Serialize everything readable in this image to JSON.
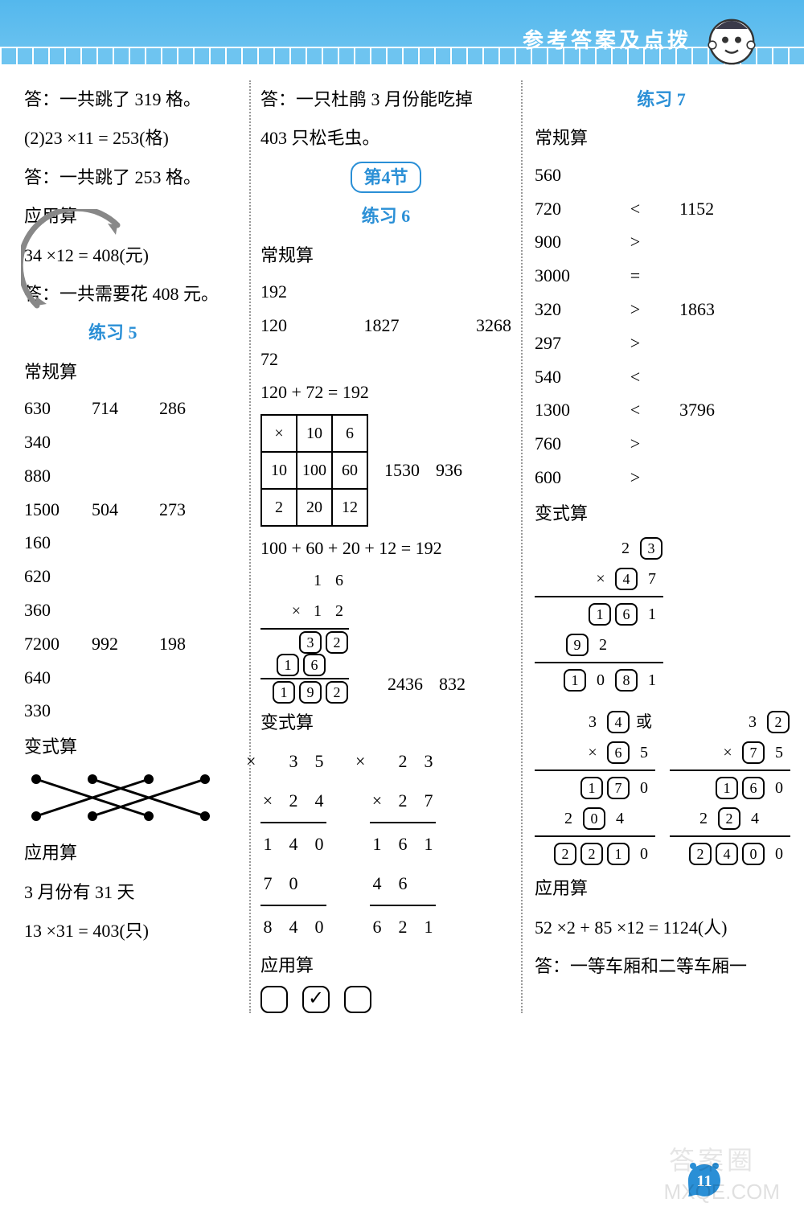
{
  "header": {
    "title": "参考答案及点拨"
  },
  "page_number": "11",
  "watermark_text": "MXQE.COM",
  "watermark_cn": "答案圈",
  "colors": {
    "header_bg": "#6ec4f0",
    "accent": "#2a8fd6",
    "text": "#000000",
    "divider": "#999999",
    "page_badge": "#2a8fd6"
  },
  "col1": {
    "prelude": {
      "ans1": "答：一共跳了 319 格。",
      "eq": "(2)23 ×11 = 253(格)",
      "ans2": "答：一共跳了 253 格。",
      "app_label": "应用算",
      "app_eq": "34 ×12 = 408(元)",
      "app_ans": "答：一共需要花 408 元。"
    },
    "practice5": {
      "label": "练习 5"
    },
    "conventional": {
      "label": "常规算",
      "rows": [
        [
          "630",
          "714",
          "286"
        ],
        [
          "340",
          "",
          ""
        ],
        [
          "880",
          "",
          ""
        ],
        [
          "1500",
          "504",
          "273"
        ],
        [
          "160",
          "",
          ""
        ],
        [
          "620",
          "",
          ""
        ],
        [
          "360",
          "",
          ""
        ],
        [
          "7200",
          "992",
          "198"
        ],
        [
          "640",
          "",
          ""
        ],
        [
          "330",
          "",
          ""
        ]
      ]
    },
    "variant": {
      "label": "变式算",
      "match": {
        "top_x": [
          15,
          85,
          155,
          225
        ],
        "bot_x": [
          15,
          85,
          155,
          225
        ],
        "edges": [
          [
            0,
            2
          ],
          [
            1,
            3
          ],
          [
            2,
            0
          ],
          [
            3,
            1
          ]
        ]
      }
    },
    "app2": {
      "label": "应用算",
      "line1": "3 月份有 31 天",
      "line2": "13 ×31 = 403(只)"
    }
  },
  "col2": {
    "prelude": {
      "ans": "答：一只杜鹃 3 月份能吃掉",
      "ans2": "403 只松毛虫。"
    },
    "section4": {
      "label": "第4节"
    },
    "practice6": {
      "label": "练习 6"
    },
    "conventional": {
      "label": "常规算",
      "r1": "192",
      "r2": [
        "120",
        "1827",
        "3268"
      ],
      "r3": "72",
      "eq1": "120 + 72 = 192",
      "grid": [
        [
          "×",
          "10",
          "6"
        ],
        [
          "10",
          "100",
          "60"
        ],
        [
          "2",
          "20",
          "12"
        ]
      ],
      "grid_side": [
        "1530",
        "936"
      ],
      "eq2": "100 + 60 + 20 + 12 = 192",
      "vcalc": {
        "top": [
          "1",
          "6"
        ],
        "mult": [
          "1",
          "2"
        ],
        "p1": [
          "3",
          "2"
        ],
        "p2": [
          "1",
          "6"
        ],
        "sum": [
          "1",
          "9",
          "2"
        ],
        "side": [
          "2436",
          "832"
        ]
      }
    },
    "variant": {
      "label": "变式算",
      "mult_a": {
        "a": "3 5",
        "b": "2 4",
        "p1": "1 4 0",
        "p2": "7 0",
        "sum": "8 4 0"
      },
      "mult_b": {
        "a": "2 3",
        "b": "2 7",
        "p1": "1 6 1",
        "p2": "4 6",
        "sum": "6 2 1"
      }
    },
    "app": {
      "label": "应用算",
      "checks": [
        "",
        "✓",
        ""
      ]
    }
  },
  "col3": {
    "practice7": {
      "label": "练习 7"
    },
    "conventional": {
      "label": "常规算",
      "rows": [
        {
          "a": "560",
          "op": "",
          "b": ""
        },
        {
          "a": "720",
          "op": "<",
          "b": "1152"
        },
        {
          "a": "900",
          "op": ">",
          "b": ""
        },
        {
          "a": "3000",
          "op": "=",
          "b": ""
        },
        {
          "a": "320",
          "op": ">",
          "b": "1863"
        },
        {
          "a": "297",
          "op": ">",
          "b": ""
        },
        {
          "a": "540",
          "op": "<",
          "b": ""
        },
        {
          "a": "1300",
          "op": "<",
          "b": "3796"
        },
        {
          "a": "760",
          "op": ">",
          "b": ""
        },
        {
          "a": "600",
          "op": ">",
          "b": ""
        }
      ]
    },
    "variant": {
      "label": "变式算",
      "block1": {
        "l1": [
          "",
          "2",
          "[3]"
        ],
        "l2": [
          "×",
          "[4]",
          "7"
        ],
        "l3": [
          "[1]",
          "[6]",
          "1"
        ],
        "l4": [
          "[9]",
          "2",
          ""
        ],
        "l5": [
          "[1]",
          "0",
          "[8]",
          "1"
        ]
      },
      "block2a": {
        "l1": [
          "",
          "3",
          "[4]",
          "或"
        ],
        "l2": [
          "×",
          "[6]",
          "5"
        ],
        "l3": [
          "[1]",
          "[7]",
          "0"
        ],
        "l4": [
          "2",
          "[0]",
          "4"
        ],
        "l5": [
          "[2]",
          "[2]",
          "[1]",
          "0"
        ]
      },
      "block2b": {
        "l1": [
          "",
          "3",
          "[2]"
        ],
        "l2": [
          "×",
          "[7]",
          "5"
        ],
        "l3": [
          "[1]",
          "[6]",
          "0"
        ],
        "l4": [
          "2",
          "[2]",
          "4"
        ],
        "l5": [
          "[2]",
          "[4]",
          "[0]",
          "0"
        ]
      }
    },
    "app": {
      "label": "应用算",
      "eq": "52 ×2 + 85 ×12 = 1124(人)",
      "ans": "答：一等车厢和二等车厢一"
    }
  }
}
